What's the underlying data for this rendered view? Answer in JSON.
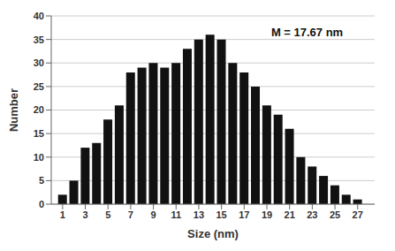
{
  "chart_data": {
    "type": "bar",
    "xlabel": "Size (nm)",
    "ylabel": "Number",
    "x": [
      1,
      2,
      3,
      4,
      5,
      6,
      7,
      8,
      9,
      10,
      11,
      12,
      13,
      14,
      15,
      16,
      17,
      18,
      19,
      20,
      21,
      22,
      23,
      24,
      25,
      26,
      27
    ],
    "values": [
      2,
      5,
      12,
      13,
      18,
      21,
      28,
      29,
      30,
      29,
      30,
      33,
      35,
      36,
      35,
      30,
      28,
      25,
      21,
      19,
      16,
      10,
      8,
      6,
      4,
      2,
      1
    ],
    "color": "#111111",
    "xlim": [
      0,
      28.5
    ],
    "xticks": [
      1,
      3,
      5,
      7,
      9,
      11,
      13,
      15,
      17,
      19,
      21,
      23,
      25,
      27
    ],
    "ylim": [
      0,
      40
    ],
    "yticks": [
      0,
      5,
      10,
      15,
      20,
      25,
      30,
      35,
      40
    ],
    "grid": true,
    "annotation": "M = 17.67 nm"
  }
}
